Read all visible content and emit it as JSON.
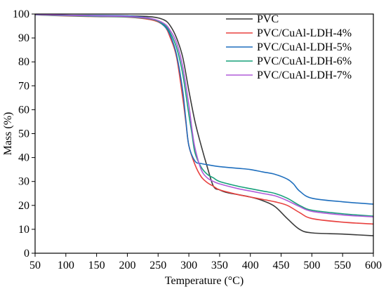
{
  "chart_data": {
    "type": "line",
    "title": "",
    "xlabel": "Temperature (°C)",
    "ylabel": "Mass (%)",
    "xlim": [
      50,
      600
    ],
    "ylim": [
      0,
      100
    ],
    "xticks": [
      50,
      100,
      150,
      200,
      250,
      300,
      350,
      400,
      450,
      500,
      550,
      600
    ],
    "yticks": [
      0,
      10,
      20,
      30,
      40,
      50,
      60,
      70,
      80,
      90,
      100
    ],
    "grid": false,
    "legend_position": "top-right",
    "series": [
      {
        "name": "PVC",
        "color": "#3a3a3a",
        "x": [
          50,
          100,
          150,
          200,
          240,
          260,
          270,
          280,
          290,
          300,
          310,
          320,
          330,
          340,
          350,
          360,
          380,
          400,
          420,
          440,
          460,
          480,
          500,
          550,
          600
        ],
        "y": [
          99.8,
          99.5,
          99.3,
          99.2,
          98.8,
          97.5,
          95,
          90,
          82,
          68,
          55,
          45,
          36,
          28,
          26.5,
          25.5,
          24.5,
          23.5,
          22,
          19.5,
          14.5,
          10,
          8.5,
          8,
          7.3
        ]
      },
      {
        "name": "PVC/CuAl-LDH-4%",
        "color": "#e8413f",
        "x": [
          50,
          100,
          150,
          200,
          240,
          260,
          270,
          280,
          290,
          295,
          300,
          310,
          320,
          330,
          340,
          350,
          380,
          400,
          420,
          440,
          460,
          480,
          500,
          550,
          600
        ],
        "y": [
          99.7,
          99.2,
          98.9,
          98.7,
          97.5,
          95,
          90,
          82,
          65,
          55,
          45,
          37,
          32,
          29.5,
          28,
          26.5,
          24.5,
          23.5,
          22.5,
          21.5,
          20,
          17,
          14.5,
          13,
          12.2
        ]
      },
      {
        "name": "PVC/CuAl-LDH-5%",
        "color": "#1f6fbe",
        "x": [
          50,
          100,
          150,
          200,
          240,
          260,
          270,
          280,
          290,
          295,
          300,
          310,
          320,
          330,
          350,
          380,
          400,
          420,
          440,
          460,
          470,
          480,
          500,
          550,
          600
        ],
        "y": [
          99.8,
          99.5,
          99.4,
          99.2,
          98,
          95,
          91,
          83,
          68,
          56,
          45,
          38.5,
          37.5,
          37,
          36.2,
          35.5,
          35,
          34,
          33,
          31,
          29,
          26,
          23,
          21.5,
          20.5
        ]
      },
      {
        "name": "PVC/CuAl-LDH-6%",
        "color": "#16a07a",
        "x": [
          50,
          100,
          150,
          200,
          240,
          260,
          270,
          280,
          290,
          300,
          305,
          310,
          320,
          330,
          340,
          350,
          380,
          400,
          420,
          440,
          460,
          480,
          500,
          550,
          600
        ],
        "y": [
          99.7,
          99.3,
          99,
          98.8,
          97.8,
          95.5,
          92,
          86,
          75,
          58,
          50,
          42,
          36,
          33,
          31.5,
          30,
          28,
          27,
          26,
          25,
          23,
          20,
          18,
          16.5,
          15.5
        ]
      },
      {
        "name": "PVC/CuAl-LDH-7%",
        "color": "#b05bd8",
        "x": [
          50,
          100,
          150,
          200,
          240,
          260,
          270,
          280,
          290,
          300,
          305,
          310,
          320,
          330,
          340,
          350,
          380,
          400,
          420,
          440,
          460,
          480,
          500,
          550,
          600
        ],
        "y": [
          99.8,
          99.5,
          99.2,
          99,
          98,
          96,
          93,
          88,
          78,
          62,
          52,
          44,
          35,
          31.5,
          30,
          29,
          27,
          26,
          25,
          24,
          22,
          19.5,
          17.5,
          16,
          15.2
        ]
      }
    ]
  }
}
